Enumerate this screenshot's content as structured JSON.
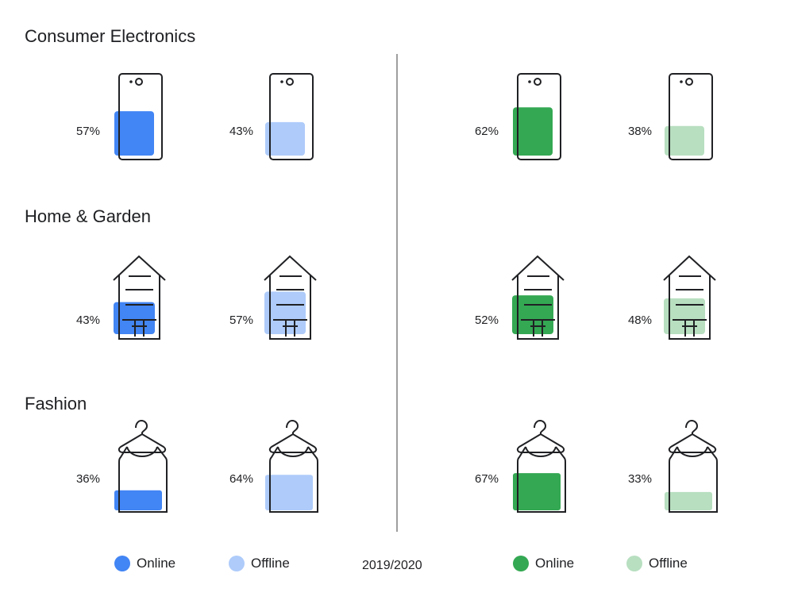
{
  "chart_data": {
    "type": "pictogram",
    "period": "2019/2020",
    "categories": [
      {
        "name": "Consumer Electronics",
        "icon": "phone-icon",
        "groups": [
          {
            "online": 57,
            "offline": 43,
            "online_label": "57%",
            "offline_label": "43%"
          },
          {
            "online": 62,
            "offline": 38,
            "online_label": "62%",
            "offline_label": "38%"
          }
        ]
      },
      {
        "name": "Home & Garden",
        "icon": "house-icon",
        "groups": [
          {
            "online": 43,
            "offline": 57,
            "online_label": "43%",
            "offline_label": "57%"
          },
          {
            "online": 52,
            "offline": 48,
            "online_label": "52%",
            "offline_label": "48%"
          }
        ]
      },
      {
        "name": "Fashion",
        "icon": "hanger-dress-icon",
        "groups": [
          {
            "online": 36,
            "offline": 64,
            "online_label": "36%",
            "offline_label": "64%"
          },
          {
            "online": 67,
            "offline": 33,
            "online_label": "67%",
            "offline_label": "33%"
          }
        ]
      }
    ],
    "legend": [
      [
        {
          "label": "Online",
          "color": "#4285f4"
        },
        {
          "label": "Offline",
          "color": "#aecbfa"
        }
      ],
      [
        {
          "label": "Online",
          "color": "#34a853"
        },
        {
          "label": "Offline",
          "color": "#b7dfc0"
        }
      ]
    ]
  }
}
